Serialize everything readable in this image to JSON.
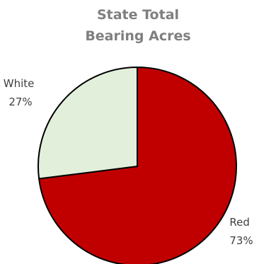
{
  "chart_data": {
    "type": "pie",
    "title_lines": [
      "State Total",
      "Bearing Acres"
    ],
    "slices": [
      {
        "label": "Red",
        "value": 73,
        "percent_label": "73%",
        "color": "#c00000"
      },
      {
        "label": "White",
        "value": 27,
        "percent_label": "27%",
        "color": "#e2efda"
      }
    ],
    "start": "12 o'clock",
    "direction": "clockwise",
    "slice_border_color": "#000000",
    "legend": "none"
  }
}
